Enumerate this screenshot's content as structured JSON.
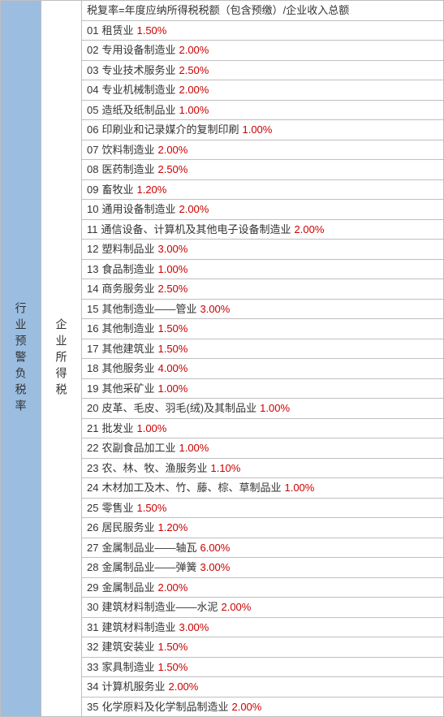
{
  "left_label": "行业预警负税率",
  "mid_label": "企业所得税",
  "header": "税复率=年度应纳所得税税额（包含预缴）/企业收入总额",
  "rows": [
    {
      "num": "01",
      "label": "租赁业",
      "pct": "1.50%"
    },
    {
      "num": "02",
      "label": "专用设备制造业",
      "pct": "2.00%"
    },
    {
      "num": "03",
      "label": "专业技术服务业",
      "pct": "2.50%"
    },
    {
      "num": "04",
      "label": "专业机械制造业",
      "pct": "2.00%"
    },
    {
      "num": "05",
      "label": "造纸及纸制品业",
      "pct": "1.00%"
    },
    {
      "num": "06",
      "label": "印刷业和记录媒介的复制印刷",
      "pct": "1.00%"
    },
    {
      "num": "07",
      "label": "饮料制造业",
      "pct": "2.00%"
    },
    {
      "num": "08",
      "label": "医药制造业",
      "pct": "2.50%"
    },
    {
      "num": "09",
      "label": "畜牧业",
      "pct": "1.20%"
    },
    {
      "num": "10",
      "label": "通用设备制造业",
      "pct": "2.00%"
    },
    {
      "num": "11",
      "label": "通信设备、计算机及其他电子设备制造业",
      "pct": "2.00%"
    },
    {
      "num": "12",
      "label": "塑料制品业",
      "pct": "3.00%"
    },
    {
      "num": "13",
      "label": "食品制造业",
      "pct": "1.00%"
    },
    {
      "num": "14",
      "label": "商务服务业",
      "pct": "2.50%"
    },
    {
      "num": "15",
      "label": "其他制造业——管业",
      "pct": "3.00%"
    },
    {
      "num": "16",
      "label": "其他制造业",
      "pct": "1.50%"
    },
    {
      "num": "17",
      "label": "其他建筑业",
      "pct": "1.50%"
    },
    {
      "num": "18",
      "label": "其他服务业",
      "pct": "4.00%"
    },
    {
      "num": "19",
      "label": "其他采矿业",
      "pct": "1.00%"
    },
    {
      "num": "20",
      "label": "皮革、毛皮、羽毛(绒)及其制品业",
      "pct": "1.00%"
    },
    {
      "num": "21",
      "label": "批发业",
      "pct": "1.00%"
    },
    {
      "num": "22",
      "label": "农副食品加工业",
      "pct": "1.00%"
    },
    {
      "num": "23",
      "label": "农、林、牧、渔服务业",
      "pct": "1.10%"
    },
    {
      "num": "24",
      "label": "木材加工及木、竹、藤、棕、草制品业",
      "pct": "1.00%"
    },
    {
      "num": "25",
      "label": "零售业",
      "pct": "1.50%"
    },
    {
      "num": "26",
      "label": "居民服务业",
      "pct": "1.20%"
    },
    {
      "num": "27",
      "label": "金属制品业——轴瓦",
      "pct": "6.00%"
    },
    {
      "num": "28",
      "label": "金属制品业——弹簧",
      "pct": "3.00%"
    },
    {
      "num": "29",
      "label": "金属制品业",
      "pct": "2.00%"
    },
    {
      "num": "30",
      "label": "建筑材料制造业——水泥",
      "pct": "2.00%"
    },
    {
      "num": "31",
      "label": "建筑材料制造业",
      "pct": "3.00%"
    },
    {
      "num": "32",
      "label": "建筑安装业",
      "pct": "1.50%"
    },
    {
      "num": "33",
      "label": "家具制造业",
      "pct": "1.50%"
    },
    {
      "num": "34",
      "label": "计算机服务业",
      "pct": "2.00%"
    },
    {
      "num": "35",
      "label": "化学原料及化学制品制造业",
      "pct": "2.00%"
    }
  ],
  "colors": {
    "left_bg": "#9bbde0",
    "border": "#bfbfbf",
    "pct": "#cc0000",
    "text": "#333333"
  }
}
